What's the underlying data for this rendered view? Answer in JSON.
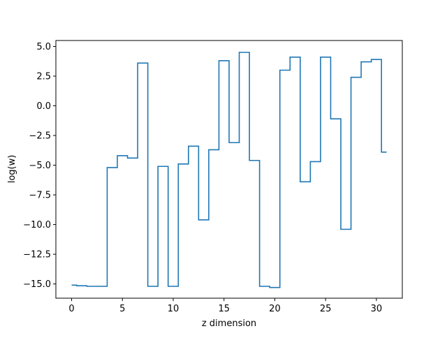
{
  "chart_data": {
    "type": "line",
    "drawstyle": "steps-mid",
    "title": "",
    "xlabel": "z dimension",
    "ylabel": "log(w)",
    "xlim": [
      -1.55,
      32.55
    ],
    "ylim": [
      -16.2,
      5.5
    ],
    "xticks": [
      0,
      5,
      10,
      15,
      20,
      25,
      30
    ],
    "xtick_labels": [
      "0",
      "5",
      "10",
      "15",
      "20",
      "25",
      "30"
    ],
    "yticks": [
      5.0,
      2.5,
      0.0,
      -2.5,
      -5.0,
      -7.5,
      -10.0,
      -12.5,
      -15.0
    ],
    "ytick_labels": [
      "5.0",
      "2.5",
      "0.0",
      "−2.5",
      "−5.0",
      "−7.5",
      "−10.0",
      "−12.5",
      "−15.0"
    ],
    "grid": false,
    "series": [
      {
        "color": "#1f77b4",
        "x": [
          0,
          1,
          2,
          3,
          4,
          5,
          6,
          7,
          8,
          9,
          10,
          11,
          12,
          13,
          14,
          15,
          16,
          17,
          18,
          19,
          20,
          21,
          22,
          23,
          24,
          25,
          26,
          27,
          28,
          29,
          30,
          31
        ],
        "y": [
          -15.1,
          -15.15,
          -15.2,
          -15.2,
          -5.2,
          -4.2,
          -4.4,
          3.6,
          -15.2,
          -5.1,
          -15.2,
          -4.9,
          -3.4,
          -9.6,
          -3.7,
          3.8,
          -3.1,
          4.5,
          -4.6,
          -15.2,
          -15.3,
          3.0,
          4.1,
          -6.4,
          -4.7,
          4.1,
          -1.1,
          -10.4,
          2.4,
          3.7,
          3.9,
          -3.9
        ]
      }
    ]
  }
}
